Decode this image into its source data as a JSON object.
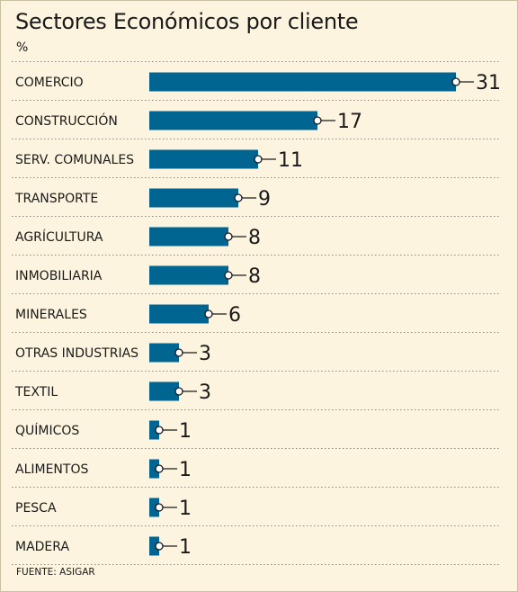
{
  "chart_data": {
    "type": "bar",
    "orientation": "horizontal",
    "title": "Sectores Económicos por cliente",
    "unit": "%",
    "categories": [
      "COMERCIO",
      "CONSTRUCCIÓN",
      "SERV. COMUNALES",
      "TRANSPORTE",
      "AGRÍCULTURA",
      "INMOBILIARIA",
      "MINERALES",
      "OTRAS INDUSTRIAS",
      "TEXTIL",
      "QUÍMICOS",
      "ALIMENTOS",
      "PESCA",
      "MADERA"
    ],
    "values": [
      31,
      17,
      11,
      9,
      8,
      8,
      6,
      3,
      3,
      1,
      1,
      1,
      1
    ],
    "source": "FUENTE: ASIGAR",
    "colors": {
      "bar": "#006591",
      "background": "#fcf4de",
      "separator": "#8a8a8a"
    },
    "grid": false,
    "legend": "none"
  }
}
